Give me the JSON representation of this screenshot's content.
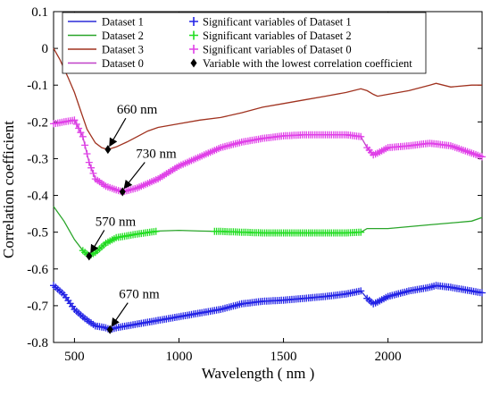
{
  "chart_data": {
    "type": "line",
    "xlabel": "Wavelength ( nm )",
    "ylabel": "Correlation coefficient",
    "xlim": [
      400,
      2450
    ],
    "ylim": [
      -0.8,
      0.1
    ],
    "xticks": [
      500,
      1000,
      1500,
      2000
    ],
    "yticks": [
      0.1,
      0,
      -0.1,
      -0.2,
      -0.3,
      -0.4,
      -0.5,
      -0.6,
      -0.7,
      -0.8
    ],
    "ytick_labels": [
      "0.1",
      "0",
      "-0.1",
      "-0.2",
      "-0.3",
      "-0.4",
      "-0.5",
      "-0.6",
      "-0.7",
      "-0.8"
    ],
    "grid": false,
    "legend_position": "top",
    "legend_lines": [
      {
        "label": "Dataset 1",
        "color": "#2b2bd8"
      },
      {
        "label": "Dataset 2",
        "color": "#2aa52a"
      },
      {
        "label": "Dataset 3",
        "color": "#a0321f"
      },
      {
        "label": "Dataset 0",
        "color": "#c040c8"
      }
    ],
    "legend_markers": [
      {
        "label": "Significant variables of Dataset 1",
        "color": "#2323e6",
        "marker": "plus"
      },
      {
        "label": "Significant variables of Dataset 2",
        "color": "#22dd22",
        "marker": "plus"
      },
      {
        "label": "Significant variables of Dataset 0",
        "color": "#e040e8",
        "marker": "plus"
      },
      {
        "label": "Variable with the lowest correlation coefficient",
        "color": "#000000",
        "marker": "diamond"
      }
    ],
    "series": [
      {
        "name": "Dataset 3",
        "color": "#a0321f",
        "x": [
          400,
          430,
          470,
          500,
          530,
          560,
          600,
          630,
          660,
          700,
          750,
          800,
          850,
          900,
          1000,
          1100,
          1200,
          1300,
          1400,
          1500,
          1600,
          1700,
          1800,
          1870,
          1900,
          1930,
          1950,
          2000,
          2100,
          2200,
          2230,
          2300,
          2400,
          2450
        ],
        "y": [
          0.0,
          -0.03,
          -0.08,
          -0.12,
          -0.17,
          -0.22,
          -0.257,
          -0.27,
          -0.275,
          -0.268,
          -0.255,
          -0.24,
          -0.225,
          -0.215,
          -0.205,
          -0.195,
          -0.188,
          -0.175,
          -0.16,
          -0.15,
          -0.14,
          -0.13,
          -0.12,
          -0.11,
          -0.115,
          -0.125,
          -0.13,
          -0.125,
          -0.115,
          -0.1,
          -0.095,
          -0.105,
          -0.1,
          -0.1
        ]
      },
      {
        "name": "Dataset 0",
        "color": "#c040c8",
        "x": [
          400,
          450,
          500,
          540,
          570,
          600,
          650,
          700,
          730,
          800,
          900,
          1000,
          1100,
          1200,
          1300,
          1400,
          1500,
          1600,
          1700,
          1800,
          1870,
          1900,
          1930,
          1950,
          2000,
          2100,
          2200,
          2300,
          2400,
          2450
        ],
        "y": [
          -0.205,
          -0.2,
          -0.195,
          -0.24,
          -0.31,
          -0.355,
          -0.375,
          -0.385,
          -0.39,
          -0.38,
          -0.355,
          -0.32,
          -0.295,
          -0.27,
          -0.255,
          -0.245,
          -0.238,
          -0.235,
          -0.235,
          -0.235,
          -0.24,
          -0.27,
          -0.29,
          -0.285,
          -0.27,
          -0.265,
          -0.258,
          -0.265,
          -0.285,
          -0.295
        ]
      },
      {
        "name": "Dataset 2",
        "color": "#2aa52a",
        "x": [
          400,
          450,
          500,
          540,
          570,
          600,
          650,
          700,
          750,
          800,
          900,
          1000,
          1100,
          1200,
          1300,
          1400,
          1500,
          1600,
          1700,
          1800,
          1870,
          1900,
          2000,
          2100,
          2200,
          2300,
          2400,
          2450
        ],
        "y": [
          -0.43,
          -0.47,
          -0.52,
          -0.55,
          -0.565,
          -0.555,
          -0.53,
          -0.515,
          -0.51,
          -0.505,
          -0.497,
          -0.495,
          -0.497,
          -0.498,
          -0.5,
          -0.502,
          -0.502,
          -0.502,
          -0.502,
          -0.502,
          -0.5,
          -0.49,
          -0.49,
          -0.485,
          -0.48,
          -0.475,
          -0.47,
          -0.46
        ]
      },
      {
        "name": "Dataset 1",
        "color": "#2b2bd8",
        "x": [
          400,
          450,
          500,
          550,
          600,
          650,
          670,
          700,
          800,
          900,
          1000,
          1100,
          1200,
          1300,
          1400,
          1500,
          1600,
          1700,
          1800,
          1870,
          1900,
          1930,
          1950,
          2000,
          2100,
          2200,
          2230,
          2300,
          2400,
          2450
        ],
        "y": [
          -0.645,
          -0.67,
          -0.71,
          -0.735,
          -0.755,
          -0.76,
          -0.765,
          -0.76,
          -0.75,
          -0.74,
          -0.73,
          -0.72,
          -0.71,
          -0.695,
          -0.688,
          -0.685,
          -0.68,
          -0.675,
          -0.668,
          -0.66,
          -0.68,
          -0.695,
          -0.69,
          -0.675,
          -0.66,
          -0.65,
          -0.645,
          -0.65,
          -0.66,
          -0.665
        ]
      }
    ],
    "significant_ranges": [
      {
        "series": "Dataset 1",
        "color": "#2323e6",
        "ranges": [
          [
            400,
            1870
          ],
          [
            1900,
            2450
          ]
        ]
      },
      {
        "series": "Dataset 2",
        "color": "#22dd22",
        "ranges": [
          [
            540,
            890
          ],
          [
            1170,
            1870
          ]
        ]
      },
      {
        "series": "Dataset 0",
        "color": "#e040e8",
        "ranges": [
          [
            400,
            1870
          ],
          [
            1900,
            2450
          ]
        ]
      }
    ],
    "minima": [
      {
        "series": "Dataset 3",
        "x": 660,
        "y": -0.275,
        "label": "660 nm"
      },
      {
        "series": "Dataset 0",
        "x": 730,
        "y": -0.39,
        "label": "730 nm"
      },
      {
        "series": "Dataset 2",
        "x": 570,
        "y": -0.565,
        "label": "570 nm"
      },
      {
        "series": "Dataset 1",
        "x": 670,
        "y": -0.765,
        "label": "670 nm"
      }
    ]
  }
}
